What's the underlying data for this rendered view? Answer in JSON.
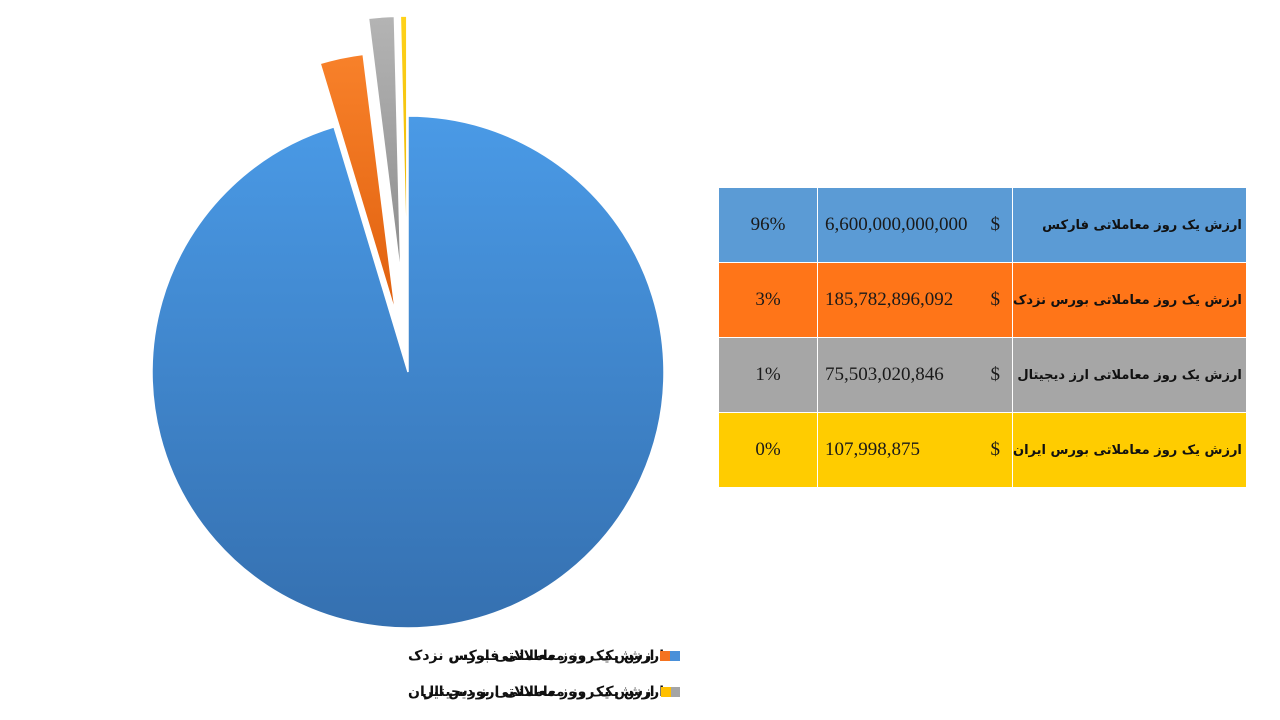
{
  "chart_data": {
    "type": "pie",
    "title": "",
    "legend_position": "bottom",
    "slices": [
      {
        "label": "ارزش یک روز معاملاتی فارکس",
        "value": 6600000000000,
        "percent": "96%",
        "value_text": "6,600,000,000,000",
        "currency": "$",
        "color": "#4A90D9"
      },
      {
        "label": "ارزش یک روز معاملاتی بورس نزدک",
        "value": 185782896092,
        "percent": "3%",
        "value_text": "185,782,896,092",
        "currency": "$",
        "color": "#F47320"
      },
      {
        "label": "ارزش یک روز معاملاتی ارز دیجیتال",
        "value": 75503020846,
        "percent": "1%",
        "value_text": "75,503,020,846",
        "currency": "$",
        "color": "#A5A5A5"
      },
      {
        "label": "ارزش یک روز معاملاتی بورس ایران",
        "value": 107998875,
        "percent": "0%",
        "value_text": "107,998,875",
        "currency": "$",
        "color": "#FFC000"
      }
    ]
  },
  "table": {
    "row_colors": [
      "#5B9BD5",
      "#FF7518",
      "#A6A6A6",
      "#FFCC00"
    ]
  }
}
